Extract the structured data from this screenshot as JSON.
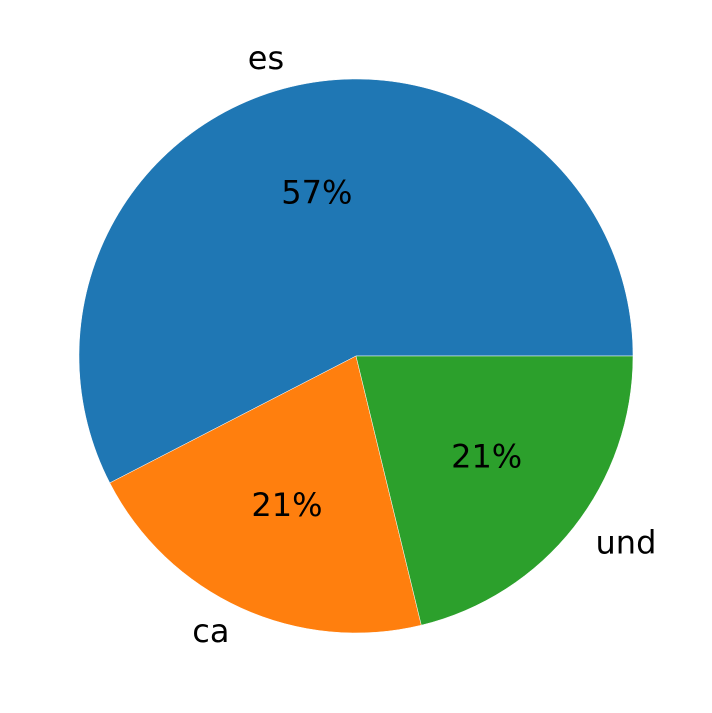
{
  "chart_data": {
    "type": "pie",
    "categories": [
      "es",
      "ca",
      "und"
    ],
    "values": [
      57,
      21,
      21
    ],
    "value_labels": [
      "57%",
      "21%",
      "21%"
    ],
    "colors": [
      "#1f77b4",
      "#ff7f0e",
      "#2ca02c"
    ]
  }
}
